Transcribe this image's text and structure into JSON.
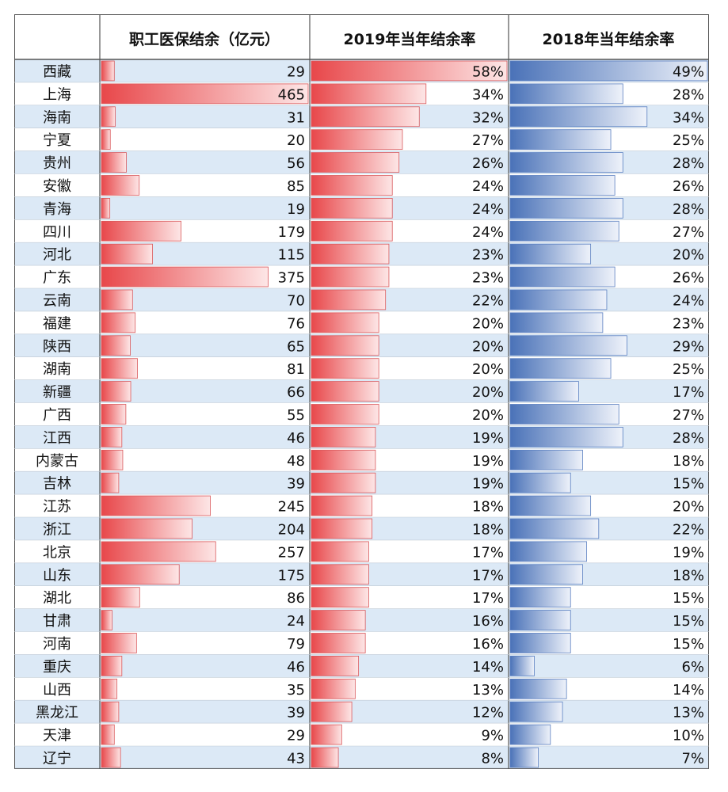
{
  "chart_data": {
    "type": "table",
    "columns": [
      "职工医保结余（亿元）",
      "2019年当年结余率",
      "2018年当年结余率"
    ],
    "accent_colors": {
      "red": "#e8474a",
      "blue": "#4a72b8",
      "row_stripe": "#dce9f6",
      "grid": "#555555"
    },
    "max_ranges": {
      "balance": 465,
      "rate2019": 58,
      "rate2018": 49
    },
    "rows": [
      {
        "region": "西藏",
        "balance": 29,
        "rate2019": 58,
        "rate2018": 49,
        "balance_label": "29",
        "rate2019_label": "58%",
        "rate2018_label": "49%"
      },
      {
        "region": "上海",
        "balance": 465,
        "rate2019": 34,
        "rate2018": 28,
        "balance_label": "465",
        "rate2019_label": "34%",
        "rate2018_label": "28%"
      },
      {
        "region": "海南",
        "balance": 31,
        "rate2019": 32,
        "rate2018": 34,
        "balance_label": "31",
        "rate2019_label": "32%",
        "rate2018_label": "34%"
      },
      {
        "region": "宁夏",
        "balance": 20,
        "rate2019": 27,
        "rate2018": 25,
        "balance_label": "20",
        "rate2019_label": "27%",
        "rate2018_label": "25%"
      },
      {
        "region": "贵州",
        "balance": 56,
        "rate2019": 26,
        "rate2018": 28,
        "balance_label": "56",
        "rate2019_label": "26%",
        "rate2018_label": "28%"
      },
      {
        "region": "安徽",
        "balance": 85,
        "rate2019": 24,
        "rate2018": 26,
        "balance_label": "85",
        "rate2019_label": "24%",
        "rate2018_label": "26%"
      },
      {
        "region": "青海",
        "balance": 19,
        "rate2019": 24,
        "rate2018": 28,
        "balance_label": "19",
        "rate2019_label": "24%",
        "rate2018_label": "28%"
      },
      {
        "region": "四川",
        "balance": 179,
        "rate2019": 24,
        "rate2018": 27,
        "balance_label": "179",
        "rate2019_label": "24%",
        "rate2018_label": "27%"
      },
      {
        "region": "河北",
        "balance": 115,
        "rate2019": 23,
        "rate2018": 20,
        "balance_label": "115",
        "rate2019_label": "23%",
        "rate2018_label": "20%"
      },
      {
        "region": "广东",
        "balance": 375,
        "rate2019": 23,
        "rate2018": 26,
        "balance_label": "375",
        "rate2019_label": "23%",
        "rate2018_label": "26%"
      },
      {
        "region": "云南",
        "balance": 70,
        "rate2019": 22,
        "rate2018": 24,
        "balance_label": "70",
        "rate2019_label": "22%",
        "rate2018_label": "24%"
      },
      {
        "region": "福建",
        "balance": 76,
        "rate2019": 20,
        "rate2018": 23,
        "balance_label": "76",
        "rate2019_label": "20%",
        "rate2018_label": "23%"
      },
      {
        "region": "陕西",
        "balance": 65,
        "rate2019": 20,
        "rate2018": 29,
        "balance_label": "65",
        "rate2019_label": "20%",
        "rate2018_label": "29%"
      },
      {
        "region": "湖南",
        "balance": 81,
        "rate2019": 20,
        "rate2018": 25,
        "balance_label": "81",
        "rate2019_label": "20%",
        "rate2018_label": "25%"
      },
      {
        "region": "新疆",
        "balance": 66,
        "rate2019": 20,
        "rate2018": 17,
        "balance_label": "66",
        "rate2019_label": "20%",
        "rate2018_label": "17%"
      },
      {
        "region": "广西",
        "balance": 55,
        "rate2019": 20,
        "rate2018": 27,
        "balance_label": "55",
        "rate2019_label": "20%",
        "rate2018_label": "27%"
      },
      {
        "region": "江西",
        "balance": 46,
        "rate2019": 19,
        "rate2018": 28,
        "balance_label": "46",
        "rate2019_label": "19%",
        "rate2018_label": "28%"
      },
      {
        "region": "内蒙古",
        "balance": 48,
        "rate2019": 19,
        "rate2018": 18,
        "balance_label": "48",
        "rate2019_label": "19%",
        "rate2018_label": "18%"
      },
      {
        "region": "吉林",
        "balance": 39,
        "rate2019": 19,
        "rate2018": 15,
        "balance_label": "39",
        "rate2019_label": "19%",
        "rate2018_label": "15%"
      },
      {
        "region": "江苏",
        "balance": 245,
        "rate2019": 18,
        "rate2018": 20,
        "balance_label": "245",
        "rate2019_label": "18%",
        "rate2018_label": "20%"
      },
      {
        "region": "浙江",
        "balance": 204,
        "rate2019": 18,
        "rate2018": 22,
        "balance_label": "204",
        "rate2019_label": "18%",
        "rate2018_label": "22%"
      },
      {
        "region": "北京",
        "balance": 257,
        "rate2019": 17,
        "rate2018": 19,
        "balance_label": "257",
        "rate2019_label": "17%",
        "rate2018_label": "19%"
      },
      {
        "region": "山东",
        "balance": 175,
        "rate2019": 17,
        "rate2018": 18,
        "balance_label": "175",
        "rate2019_label": "17%",
        "rate2018_label": "18%"
      },
      {
        "region": "湖北",
        "balance": 86,
        "rate2019": 17,
        "rate2018": 15,
        "balance_label": "86",
        "rate2019_label": "17%",
        "rate2018_label": "15%"
      },
      {
        "region": "甘肃",
        "balance": 24,
        "rate2019": 16,
        "rate2018": 15,
        "balance_label": "24",
        "rate2019_label": "16%",
        "rate2018_label": "15%"
      },
      {
        "region": "河南",
        "balance": 79,
        "rate2019": 16,
        "rate2018": 15,
        "balance_label": "79",
        "rate2019_label": "16%",
        "rate2018_label": "15%"
      },
      {
        "region": "重庆",
        "balance": 46,
        "rate2019": 14,
        "rate2018": 6,
        "balance_label": "46",
        "rate2019_label": "14%",
        "rate2018_label": "6%"
      },
      {
        "region": "山西",
        "balance": 35,
        "rate2019": 13,
        "rate2018": 14,
        "balance_label": "35",
        "rate2019_label": "13%",
        "rate2018_label": "14%"
      },
      {
        "region": "黑龙江",
        "balance": 39,
        "rate2019": 12,
        "rate2018": 13,
        "balance_label": "39",
        "rate2019_label": "12%",
        "rate2018_label": "13%"
      },
      {
        "region": "天津",
        "balance": 29,
        "rate2019": 9,
        "rate2018": 10,
        "balance_label": "29",
        "rate2019_label": "9%",
        "rate2018_label": "10%"
      },
      {
        "region": "辽宁",
        "balance": 43,
        "rate2019": 8,
        "rate2018": 7,
        "balance_label": "43",
        "rate2019_label": "8%",
        "rate2018_label": "7%"
      }
    ]
  }
}
